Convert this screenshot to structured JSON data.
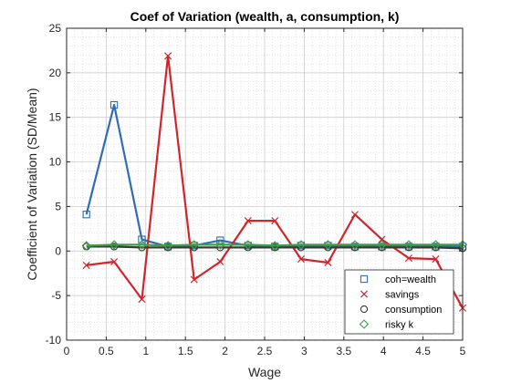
{
  "chart_data": {
    "type": "line",
    "title": "Coef of Variation (wealth, a, consumption, k)",
    "xlabel": "Wage",
    "ylabel": "Coefficient of Variation (SD/Mean)",
    "xlim": [
      0,
      5
    ],
    "ylim": [
      -10,
      25
    ],
    "xticks": [
      "0",
      "0.5",
      "1",
      "1.5",
      "2",
      "2.5",
      "3",
      "3.5",
      "4",
      "4.5",
      "5"
    ],
    "yticks": [
      "-10",
      "-5",
      "0",
      "5",
      "10",
      "15",
      "20",
      "25"
    ],
    "grid": true,
    "minor_grid": true,
    "legend_location": "bottom-right",
    "x": [
      0.25,
      0.6,
      0.95,
      1.28,
      1.61,
      1.94,
      2.29,
      2.63,
      2.96,
      3.3,
      3.64,
      3.98,
      4.32,
      4.66,
      5.0
    ],
    "series": [
      {
        "name": "coh=wealth",
        "marker": "square",
        "color": "#2e6db4",
        "values": [
          4.1,
          16.4,
          1.3,
          0.5,
          0.6,
          1.2,
          0.6,
          0.5,
          0.6,
          0.6,
          0.5,
          0.5,
          0.5,
          0.5,
          0.5
        ]
      },
      {
        "name": "savings",
        "marker": "x",
        "color": "#d0262b",
        "values": [
          -1.6,
          -1.2,
          -5.4,
          21.9,
          -3.2,
          -1.2,
          3.4,
          3.4,
          -0.9,
          -1.3,
          4.1,
          1.3,
          -0.8,
          -0.9,
          -6.4
        ]
      },
      {
        "name": "consumption",
        "marker": "circle",
        "color": "#3a3a3a",
        "values": [
          0.5,
          0.5,
          0.4,
          0.4,
          0.4,
          0.4,
          0.4,
          0.4,
          0.4,
          0.4,
          0.4,
          0.4,
          0.4,
          0.4,
          0.3
        ]
      },
      {
        "name": "risky k",
        "marker": "diamond",
        "color": "#3aa043",
        "values": [
          0.6,
          0.7,
          0.7,
          0.6,
          0.7,
          0.7,
          0.7,
          0.6,
          0.7,
          0.7,
          0.7,
          0.7,
          0.7,
          0.7,
          0.7
        ]
      }
    ]
  }
}
